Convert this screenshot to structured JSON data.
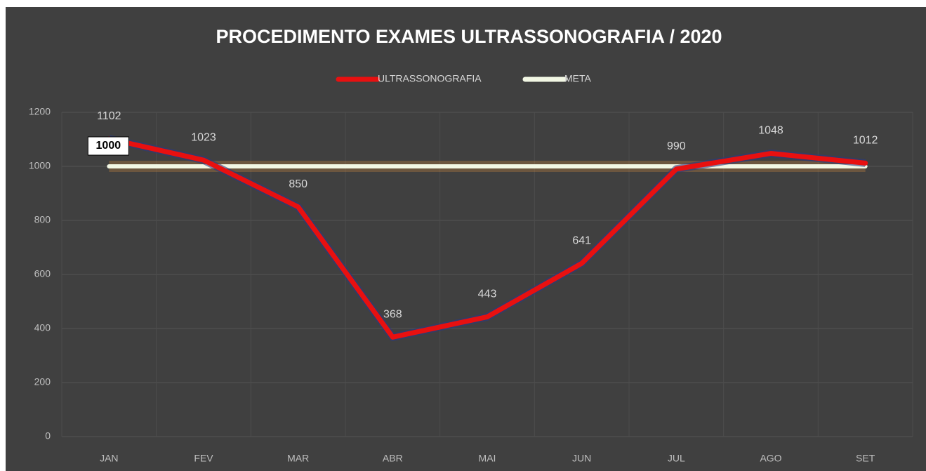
{
  "chart_data": {
    "type": "line",
    "title": "PROCEDIMENTO EXAMES ULTRASSONOGRAFIA / 2020",
    "categories": [
      "JAN",
      "FEV",
      "MAR",
      "ABR",
      "MAI",
      "JUN",
      "JUL",
      "AGO",
      "SET"
    ],
    "series": [
      {
        "name": "ULTRASSONOGRAFIA",
        "color": "#e81010",
        "values": [
          1102,
          1023,
          850,
          368,
          443,
          641,
          990,
          1048,
          1012
        ]
      },
      {
        "name": "META",
        "color": "#f2f7e4",
        "values": [
          1000,
          1000,
          1000,
          1000,
          1000,
          1000,
          1000,
          1000,
          1000
        ]
      }
    ],
    "ylim": [
      0,
      1200
    ],
    "yticks": [
      0,
      200,
      400,
      600,
      800,
      1000,
      1200
    ],
    "grid": true,
    "legend": "top"
  }
}
